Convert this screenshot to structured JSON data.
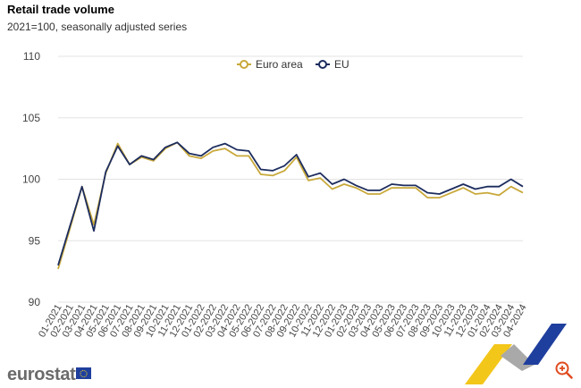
{
  "header": {
    "title": "Retail trade volume",
    "subtitle": "2021=100, seasonally adjusted series"
  },
  "footer": {
    "logo_text": "eurostat"
  },
  "icons": {
    "logo": "eurostat-logo",
    "flag": "eu-flag-icon",
    "zoom": "zoom-in-icon"
  },
  "colors": {
    "euro_area": "#c8a83a",
    "eu": "#1c2c5e",
    "grid": "#e3e3e3"
  },
  "chart_data": {
    "type": "line",
    "title": "Retail trade volume",
    "subtitle": "2021=100, seasonally adjusted series",
    "ylim": [
      90,
      110
    ],
    "yticks": [
      90,
      95,
      100,
      105,
      110
    ],
    "grid": true,
    "legend_position": "top-center",
    "x": [
      "01-2021",
      "02-2021",
      "03-2021",
      "04-2021",
      "05-2021",
      "06-2021",
      "07-2021",
      "08-2021",
      "09-2021",
      "10-2021",
      "11-2021",
      "12-2021",
      "01-2022",
      "02-2022",
      "03-2022",
      "04-2022",
      "05-2022",
      "06-2022",
      "07-2022",
      "08-2022",
      "09-2022",
      "10-2022",
      "11-2022",
      "12-2022",
      "01-2023",
      "02-2023",
      "03-2023",
      "04-2023",
      "05-2023",
      "06-2023",
      "07-2023",
      "08-2023",
      "09-2023",
      "10-2023",
      "11-2023",
      "12-2023",
      "01-2024",
      "02-2024",
      "03-2024",
      "04-2024"
    ],
    "series": [
      {
        "name": "Euro area",
        "color": "#c8a83a",
        "values": [
          92.7,
          96.0,
          99.4,
          96.3,
          100.5,
          102.9,
          101.2,
          101.8,
          101.5,
          102.5,
          103.0,
          101.9,
          101.7,
          102.3,
          102.5,
          101.9,
          101.9,
          100.4,
          100.3,
          100.7,
          101.8,
          99.9,
          100.1,
          99.2,
          99.6,
          99.3,
          98.8,
          98.8,
          99.3,
          99.3,
          99.3,
          98.5,
          98.5,
          98.9,
          99.3,
          98.8,
          98.9,
          98.7,
          99.4,
          98.9
        ]
      },
      {
        "name": "EU",
        "color": "#1c2c5e",
        "values": [
          93.0,
          96.2,
          99.4,
          95.8,
          100.6,
          102.7,
          101.2,
          101.9,
          101.6,
          102.6,
          103.0,
          102.1,
          101.9,
          102.6,
          102.9,
          102.4,
          102.3,
          100.8,
          100.7,
          101.1,
          102.0,
          100.2,
          100.5,
          99.6,
          100.0,
          99.5,
          99.1,
          99.1,
          99.6,
          99.5,
          99.5,
          98.9,
          98.8,
          99.2,
          99.6,
          99.2,
          99.4,
          99.4,
          100.0,
          99.4
        ]
      }
    ]
  }
}
